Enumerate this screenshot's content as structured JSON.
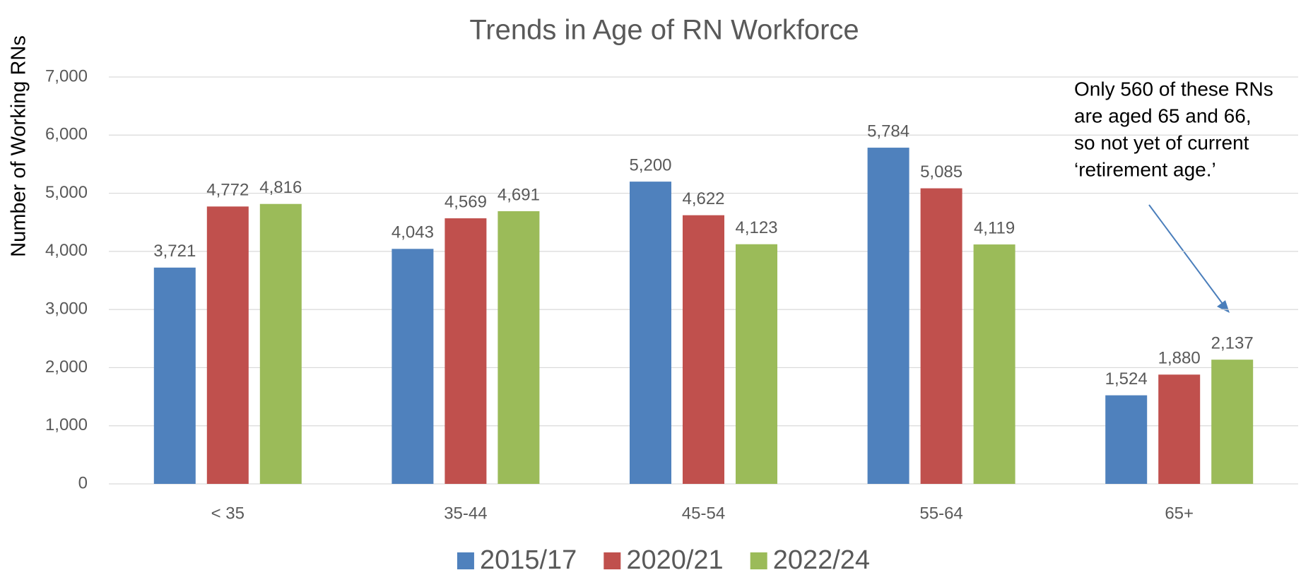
{
  "chart_data": {
    "type": "bar",
    "title": "Trends in Age of RN Workforce",
    "y_label": "Number of Working RNs",
    "categories": [
      "< 35",
      "35-44",
      "45-54",
      "55-64",
      "65+"
    ],
    "series": [
      {
        "name": "2015/17",
        "color": "#4f81bd",
        "values": [
          3721,
          4043,
          5200,
          5784,
          1524
        ],
        "value_labels": [
          "3,721",
          "4,043",
          "5,200",
          "5,784",
          "1,524"
        ]
      },
      {
        "name": "2020/21",
        "color": "#c0504d",
        "values": [
          4772,
          4569,
          4622,
          5085,
          1880
        ],
        "value_labels": [
          "4,772",
          "4,569",
          "4,622",
          "5,085",
          "1,880"
        ]
      },
      {
        "name": "2022/24",
        "color": "#9bbb59",
        "values": [
          4816,
          4691,
          4123,
          4119,
          2137
        ],
        "value_labels": [
          "4,816",
          "4,691",
          "4,123",
          "4,119",
          "2,137"
        ]
      }
    ],
    "ylim": [
      0,
      7000
    ],
    "yticks": [
      0,
      {
        "value": 1000,
        "label": "1,000"
      },
      {
        "value": 2000,
        "label": "2,000"
      },
      {
        "value": 3000,
        "label": "3,000"
      },
      {
        "value": 4000,
        "label": "4,000"
      },
      {
        "value": 5000,
        "label": "5,000"
      },
      {
        "value": 6000,
        "label": "6,000"
      },
      {
        "value": 7000,
        "label": "7,000"
      }
    ],
    "grid": true,
    "legend": "bottom",
    "annotation": [
      "Only 560 of these RNs",
      "are aged 65 and 66,",
      "so not yet of current",
      "‘retirement age.’"
    ]
  }
}
